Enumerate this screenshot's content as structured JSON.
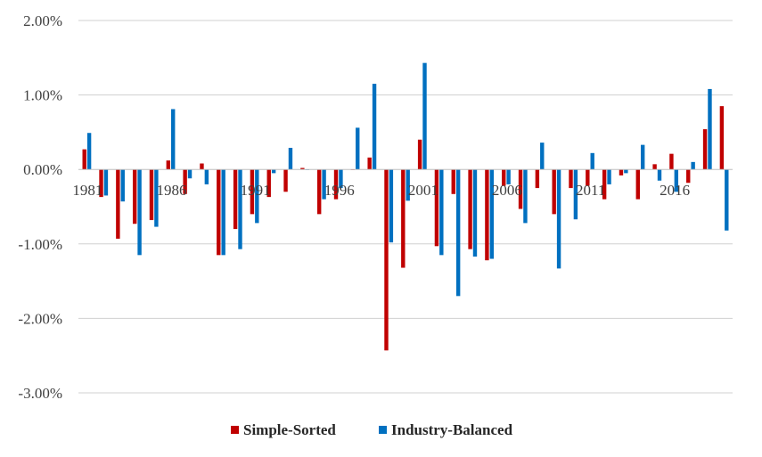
{
  "chart_data": {
    "type": "bar",
    "title": "",
    "xlabel": "",
    "ylabel": "",
    "ylim": [
      -0.03,
      0.02
    ],
    "y_ticks": [
      0.02,
      0.01,
      0.0,
      -0.01,
      -0.02,
      -0.03
    ],
    "y_tick_labels": [
      "2.00%",
      "1.00%",
      "0.00%",
      "-1.00%",
      "-2.00%",
      "-3.00%"
    ],
    "grid": true,
    "legend_position": "bottom",
    "categories": [
      1981,
      1982,
      1983,
      1984,
      1985,
      1986,
      1987,
      1988,
      1989,
      1990,
      1991,
      1992,
      1993,
      1994,
      1995,
      1996,
      1997,
      1998,
      1999,
      2000,
      2001,
      2002,
      2003,
      2004,
      2005,
      2006,
      2007,
      2008,
      2009,
      2010,
      2011,
      2012,
      2013,
      2014,
      2015,
      2016,
      2017,
      2018,
      2019
    ],
    "x_tick_labels": [
      {
        "year": 1981,
        "label": "1981"
      },
      {
        "year": 1986,
        "label": "1986"
      },
      {
        "year": 1991,
        "label": "1991"
      },
      {
        "year": 1996,
        "label": "1996"
      },
      {
        "year": 2001,
        "label": "2001"
      },
      {
        "year": 2006,
        "label": "2006"
      },
      {
        "year": 2011,
        "label": "2011"
      },
      {
        "year": 2016,
        "label": "2016"
      }
    ],
    "series": [
      {
        "name": "Simple-Sorted",
        "color": "#C00000",
        "values": [
          0.0027,
          -0.0037,
          -0.0093,
          -0.0073,
          -0.0068,
          0.0012,
          -0.0033,
          0.0008,
          -0.0115,
          -0.008,
          -0.006,
          -0.0037,
          -0.003,
          0.0002,
          -0.006,
          -0.004,
          0.0,
          0.0016,
          -0.0243,
          -0.0132,
          0.004,
          -0.0103,
          -0.0033,
          -0.0107,
          -0.0122,
          -0.0022,
          -0.0053,
          -0.0025,
          -0.006,
          -0.0025,
          -0.0022,
          -0.004,
          -0.0008,
          -0.004,
          0.0007,
          0.0021,
          -0.0018,
          0.0054,
          0.0085
        ]
      },
      {
        "name": "Industry-Balanced",
        "color": "#0070C0",
        "values": [
          0.0049,
          -0.0035,
          -0.0043,
          -0.0115,
          -0.0077,
          0.0081,
          -0.0012,
          -0.002,
          -0.0115,
          -0.0107,
          -0.0072,
          -0.0005,
          0.0029,
          0.0,
          -0.004,
          -0.0025,
          0.0056,
          0.0115,
          -0.0098,
          -0.0042,
          0.0143,
          -0.0115,
          -0.017,
          -0.0117,
          -0.012,
          -0.002,
          -0.0072,
          0.0036,
          -0.0133,
          -0.0067,
          0.0022,
          -0.002,
          -0.0005,
          0.0033,
          -0.0015,
          -0.003,
          0.001,
          0.0108,
          -0.0082
        ]
      }
    ]
  }
}
